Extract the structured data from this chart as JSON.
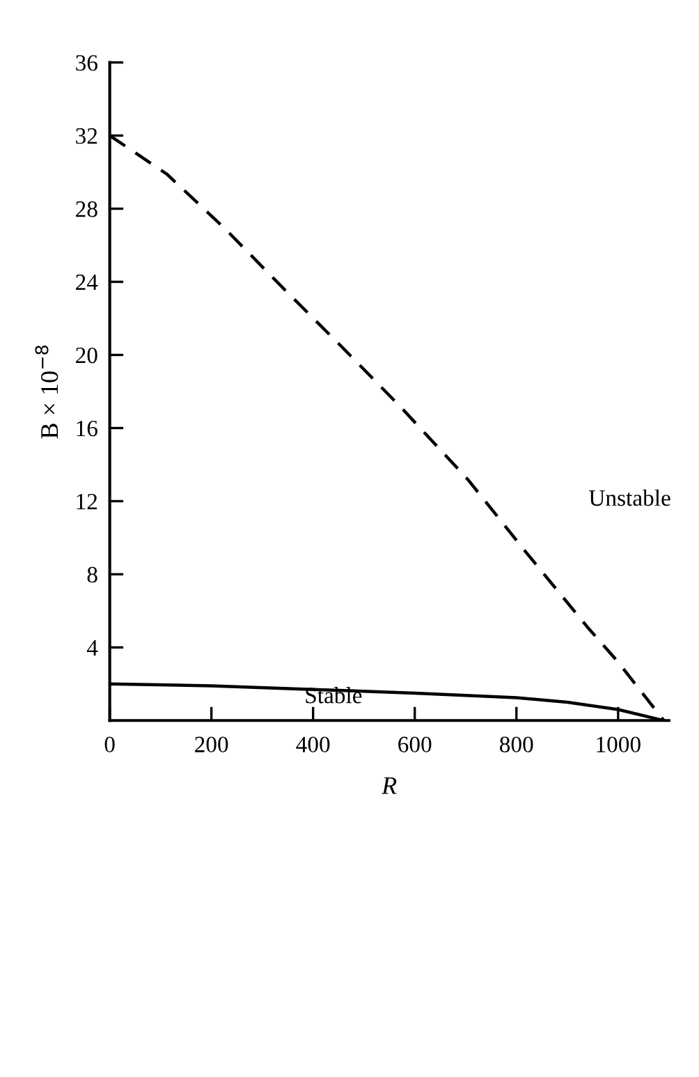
{
  "chart_data": {
    "type": "line",
    "xlabel": "R",
    "ylabel": "B × 10$^{−8}$",
    "xlim": [
      0,
      1100
    ],
    "ylim": [
      0,
      36
    ],
    "xticks": [
      0,
      200,
      400,
      600,
      800,
      1000
    ],
    "yticks": [
      4,
      8,
      12,
      16,
      20,
      24,
      28,
      32,
      36
    ],
    "grid": false,
    "legend": false,
    "series": [
      {
        "color": "#000000",
        "line_style": "dashed",
        "x": [
          0,
          112,
          227,
          343,
          458,
          574,
          704,
          819,
          940,
          1000,
          1090
        ],
        "values": [
          32,
          29.9,
          26.9,
          23.6,
          20.4,
          17.1,
          13.2,
          9.2,
          5.1,
          3.2,
          0
        ]
      },
      {
        "color": "#000000",
        "line_style": "solid",
        "x": [
          0,
          200,
          400,
          600,
          800,
          900,
          1000,
          1090
        ],
        "values": [
          2.0,
          1.9,
          1.7,
          1.5,
          1.25,
          1.0,
          0.6,
          0
        ]
      }
    ],
    "annotations": [
      "Unstable",
      "Stable"
    ]
  }
}
